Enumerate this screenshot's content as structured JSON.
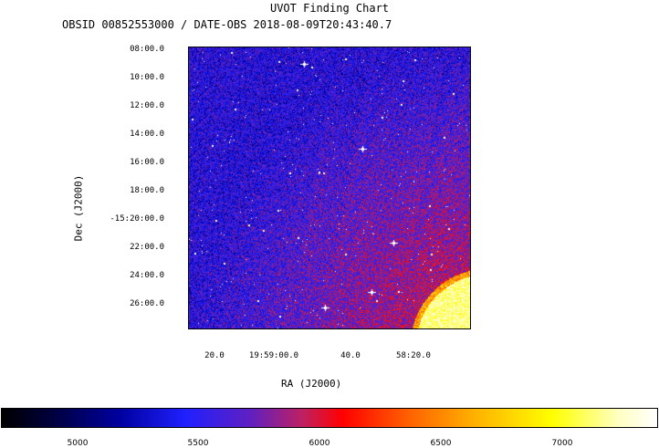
{
  "title": "UVOT Finding Chart",
  "subtitle": "OBSID 00852553000 / DATE-OBS 2018-08-09T20:43:40.7",
  "dec_axis": {
    "label": "Dec (J2000)",
    "ticks": [
      "08:00.0",
      "10:00.0",
      "12:00.0",
      "14:00.0",
      "16:00.0",
      "18:00.0",
      "-15:20:00.0",
      "22:00.0",
      "24:00.0",
      "26:00.0"
    ]
  },
  "ra_axis": {
    "label": "RA (J2000)",
    "ticks": [
      "20.0",
      "19:59:00.0",
      "40.0",
      "58:20.0"
    ]
  },
  "colorbar": {
    "ticks": [
      "5000",
      "5500",
      "6000",
      "6500",
      "7000"
    ]
  }
}
